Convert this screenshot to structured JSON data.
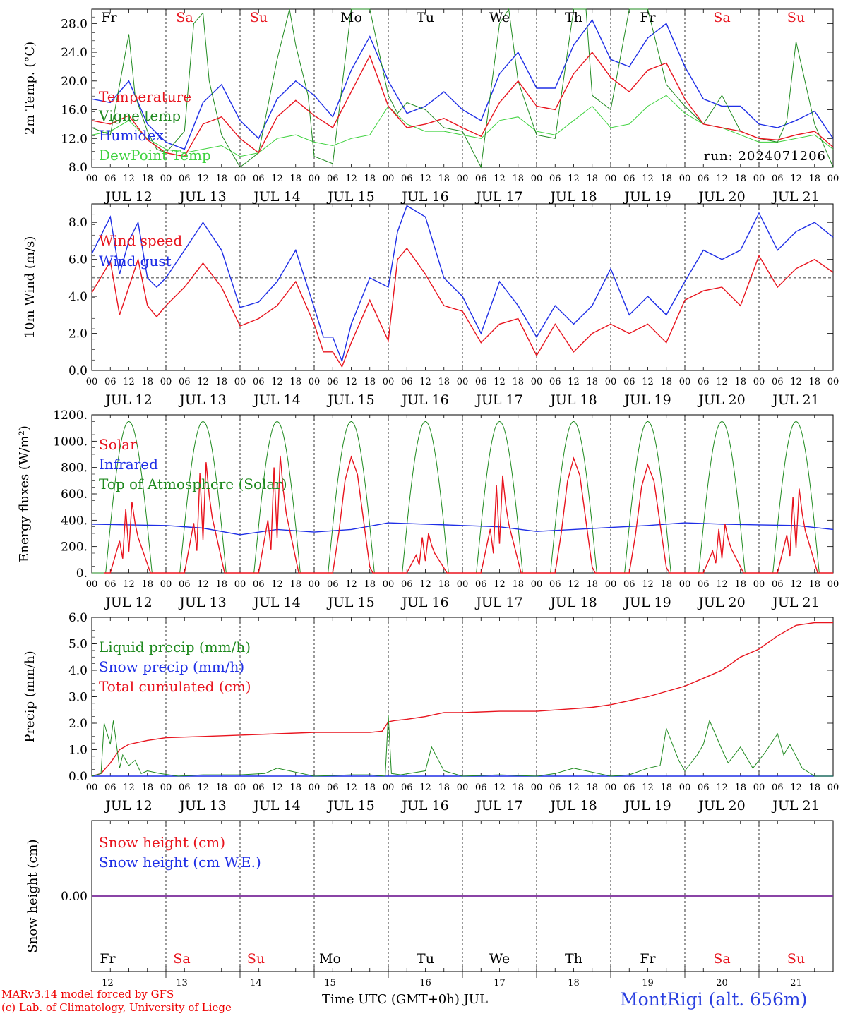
{
  "colors": {
    "red": "#e8141e",
    "green": "#1f8a1f",
    "blue": "#1e2ee6",
    "lightgreen": "#3ed23e",
    "weekend": "#e8141e",
    "weekday": "#000000",
    "snow": "#7a2a9a"
  },
  "days": [
    {
      "abbr": "Fr",
      "date": "JUL 12",
      "num": "12",
      "weekend": false
    },
    {
      "abbr": "Sa",
      "date": "JUL 13",
      "num": "13",
      "weekend": true
    },
    {
      "abbr": "Su",
      "date": "JUL 14",
      "num": "14",
      "weekend": true
    },
    {
      "abbr": "Mo",
      "date": "JUL 15",
      "num": "15",
      "weekend": false
    },
    {
      "abbr": "Tu",
      "date": "JUL 16",
      "num": "16",
      "weekend": false
    },
    {
      "abbr": "We",
      "date": "JUL 17",
      "num": "17",
      "weekend": false
    },
    {
      "abbr": "Th",
      "date": "JUL 18",
      "num": "18",
      "weekend": false
    },
    {
      "abbr": "Fr",
      "date": "JUL 19",
      "num": "19",
      "weekend": false
    },
    {
      "abbr": "Sa",
      "date": "JUL 20",
      "num": "20",
      "weekend": true
    },
    {
      "abbr": "Su",
      "date": "JUL 21",
      "num": "21",
      "weekend": true
    }
  ],
  "hour_ticks": [
    "00",
    "06",
    "12",
    "18"
  ],
  "last_hour_tick": "00",
  "footer": {
    "credit1": "MARv3.14 model forced by GFS",
    "credit2": "(c) Lab. of Climatology, University of Liege",
    "xlabel": "Time UTC (GMT+0h) JUL",
    "station": "MontRigi (alt. 656m)"
  },
  "chart_data": [
    {
      "type": "line",
      "ylabel": "2m Temp. (°C)",
      "ylim": [
        8,
        30
      ],
      "yticks": [
        "8.0",
        "12.0",
        "16.0",
        "20.0",
        "24.0",
        "28.0"
      ],
      "annotation": "run: 2024071206",
      "x_unit": "hours since JUL 12 00 UTC",
      "series": [
        {
          "name": "Temperature",
          "color": "red",
          "x": [
            0,
            6,
            12,
            18,
            24,
            30,
            36,
            42,
            48,
            54,
            60,
            66,
            72,
            78,
            84,
            90,
            96,
            102,
            108,
            114,
            120,
            126,
            132,
            138,
            144,
            150,
            156,
            162,
            168,
            174,
            180,
            186,
            192,
            198,
            204,
            210,
            216,
            222,
            228,
            234,
            240
          ],
          "values": [
            14.5,
            14.0,
            15.2,
            11.8,
            10.0,
            9.5,
            14.0,
            15.0,
            12.0,
            10.0,
            15.0,
            17.3,
            15.2,
            13.5,
            18.5,
            23.5,
            16.5,
            13.5,
            14.0,
            14.8,
            13.5,
            12.3,
            17.0,
            20.0,
            16.5,
            16.0,
            21.0,
            24.0,
            20.5,
            18.5,
            21.5,
            22.5,
            17.5,
            14.0,
            13.5,
            13.0,
            12.0,
            11.8,
            12.5,
            13.0,
            10.8
          ]
        },
        {
          "name": "Vigne temp",
          "color": "green",
          "x": [
            0,
            6,
            12,
            14,
            18,
            21,
            24,
            30,
            33,
            36,
            38,
            42,
            48,
            54,
            60,
            64,
            66,
            70,
            72,
            78,
            84,
            90,
            96,
            99,
            102,
            108,
            114,
            120,
            126,
            132,
            135,
            138,
            144,
            150,
            156,
            160,
            162,
            168,
            174,
            180,
            186,
            192,
            198,
            204,
            210,
            216,
            222,
            225,
            228,
            234,
            240
          ],
          "values": [
            13.5,
            12.5,
            26.5,
            18.0,
            13.0,
            10.5,
            10.0,
            13.0,
            28.0,
            29.5,
            20.0,
            12.5,
            7.5,
            10.0,
            23.0,
            30.0,
            25.0,
            18.0,
            9.5,
            8.5,
            30.0,
            30.0,
            18.0,
            15.5,
            17.0,
            16.0,
            13.5,
            13.0,
            8.0,
            28.0,
            30.0,
            20.0,
            12.5,
            12.0,
            30.0,
            30.0,
            18.0,
            16.0,
            30.0,
            30.0,
            19.5,
            16.5,
            14.0,
            18.0,
            13.0,
            12.0,
            11.5,
            14.5,
            25.5,
            14.0,
            8.0
          ]
        },
        {
          "name": "Humidex",
          "color": "blue",
          "x": [
            0,
            6,
            12,
            18,
            24,
            30,
            36,
            42,
            48,
            54,
            60,
            66,
            72,
            78,
            84,
            90,
            96,
            102,
            108,
            114,
            120,
            126,
            132,
            138,
            144,
            150,
            156,
            162,
            168,
            174,
            180,
            186,
            192,
            198,
            204,
            210,
            216,
            222,
            228,
            234,
            240
          ],
          "values": [
            17.5,
            17.0,
            20.0,
            14.0,
            11.5,
            10.5,
            17.0,
            19.5,
            14.5,
            12.0,
            17.5,
            20.0,
            18.0,
            15.0,
            21.5,
            26.2,
            20.0,
            15.5,
            16.5,
            18.5,
            16.0,
            14.5,
            21.0,
            24.0,
            19.0,
            19.0,
            25.0,
            28.5,
            23.0,
            22.0,
            26.0,
            28.0,
            22.0,
            17.5,
            16.5,
            16.5,
            14.0,
            13.5,
            14.5,
            15.8,
            12.0
          ]
        },
        {
          "name": "DewPoint Temp",
          "color": "lightgreen",
          "x": [
            0,
            6,
            12,
            18,
            24,
            30,
            36,
            42,
            48,
            54,
            60,
            66,
            72,
            78,
            84,
            90,
            96,
            102,
            108,
            114,
            120,
            126,
            132,
            138,
            144,
            150,
            156,
            162,
            168,
            174,
            180,
            186,
            192,
            198,
            204,
            210,
            216,
            222,
            228,
            234,
            240
          ],
          "values": [
            12.5,
            13.0,
            14.5,
            12.0,
            10.5,
            10.0,
            10.5,
            11.0,
            9.5,
            10.0,
            12.0,
            12.5,
            11.5,
            11.0,
            12.0,
            12.5,
            16.5,
            14.0,
            13.0,
            13.0,
            12.5,
            12.0,
            14.5,
            15.0,
            13.0,
            12.5,
            14.5,
            16.5,
            13.5,
            14.0,
            16.5,
            18.0,
            15.5,
            14.0,
            13.5,
            12.5,
            11.5,
            11.5,
            12.0,
            12.5,
            10.5
          ]
        }
      ]
    },
    {
      "type": "line",
      "ylabel": "10m Wind (m/s)",
      "ylim": [
        0,
        9
      ],
      "yticks": [
        "0.0",
        "2.0",
        "4.0",
        "6.0",
        "8.0"
      ],
      "reference_line": 5.0,
      "x_unit": "hours since JUL 12 00 UTC",
      "series": [
        {
          "name": "Wind speed",
          "color": "red",
          "x": [
            0,
            6,
            9,
            12,
            15,
            18,
            21,
            24,
            30,
            36,
            42,
            48,
            54,
            60,
            66,
            72,
            75,
            78,
            81,
            84,
            90,
            96,
            99,
            102,
            108,
            114,
            120,
            126,
            132,
            138,
            144,
            150,
            156,
            162,
            168,
            174,
            180,
            186,
            192,
            198,
            204,
            210,
            216,
            222,
            228,
            234,
            240
          ],
          "values": [
            4.2,
            5.9,
            3.0,
            4.5,
            6.0,
            3.5,
            2.9,
            3.5,
            4.5,
            5.8,
            4.5,
            2.4,
            2.8,
            3.5,
            4.8,
            2.5,
            1.0,
            1.0,
            0.2,
            1.5,
            3.8,
            1.6,
            6.0,
            6.6,
            5.2,
            3.5,
            3.2,
            1.5,
            2.5,
            2.8,
            0.8,
            2.5,
            1.0,
            2.0,
            2.5,
            2.0,
            2.5,
            1.5,
            3.8,
            4.3,
            4.5,
            3.5,
            6.2,
            4.5,
            5.5,
            6.0,
            5.3
          ]
        },
        {
          "name": "Wind gust",
          "color": "blue",
          "x": [
            0,
            6,
            9,
            12,
            15,
            18,
            21,
            24,
            30,
            36,
            42,
            48,
            54,
            60,
            66,
            72,
            75,
            78,
            81,
            84,
            90,
            96,
            99,
            102,
            108,
            114,
            120,
            126,
            132,
            138,
            144,
            150,
            156,
            162,
            168,
            174,
            180,
            186,
            192,
            198,
            204,
            210,
            216,
            222,
            228,
            234,
            240
          ],
          "values": [
            6.3,
            8.3,
            5.2,
            7.0,
            8.0,
            5.0,
            4.5,
            5.0,
            6.5,
            8.0,
            6.5,
            3.4,
            3.7,
            4.8,
            6.5,
            3.4,
            1.8,
            1.8,
            0.5,
            2.5,
            5.0,
            4.5,
            7.5,
            8.9,
            8.3,
            5.0,
            4.0,
            2.0,
            4.8,
            3.5,
            1.8,
            3.5,
            2.5,
            3.5,
            5.5,
            3.0,
            4.0,
            3.0,
            4.8,
            6.5,
            6.0,
            6.5,
            8.5,
            6.5,
            7.5,
            8.0,
            7.2
          ]
        }
      ]
    },
    {
      "type": "line",
      "ylabel": "Energy fluxes (W/m²)",
      "ylim": [
        0,
        1200
      ],
      "yticks": [
        "0.",
        "200.",
        "400.",
        "600.",
        "800.",
        "1000.",
        "1200."
      ],
      "x_unit": "hours since JUL 12 00 UTC",
      "series": [
        {
          "name": "Solar",
          "color": "red",
          "peaks": [
            [
              12,
              540
            ],
            [
              36,
              840
            ],
            [
              60,
              890
            ],
            [
              84,
              880
            ],
            [
              108,
              300
            ],
            [
              132,
              740
            ],
            [
              156,
              870
            ],
            [
              180,
              820
            ],
            [
              204,
              370
            ],
            [
              228,
              640
            ]
          ]
        },
        {
          "name": "Infrared",
          "color": "blue",
          "x": [
            0,
            12,
            24,
            36,
            48,
            60,
            72,
            84,
            96,
            108,
            120,
            132,
            144,
            156,
            168,
            180,
            192,
            204,
            216,
            228,
            240
          ],
          "values": [
            370,
            365,
            360,
            340,
            290,
            330,
            310,
            330,
            380,
            370,
            360,
            350,
            315,
            330,
            345,
            360,
            380,
            370,
            365,
            360,
            330
          ]
        },
        {
          "name": "Top of Atmosphere (Solar)",
          "color": "green",
          "peak": 1150,
          "daylight_hours": [
            4.5,
            19.5
          ]
        }
      ]
    },
    {
      "type": "line",
      "ylabel": "Precip (mm/h)",
      "ylim": [
        0,
        6
      ],
      "yticks": [
        "0.0",
        "1.0",
        "2.0",
        "3.0",
        "4.0",
        "5.0",
        "6.0"
      ],
      "x_unit": "hours since JUL 12 00 UTC",
      "series": [
        {
          "name": "Liquid precip (mm/h)",
          "color": "green",
          "x": [
            0,
            3,
            4,
            6,
            7,
            9,
            10,
            12,
            14,
            16,
            18,
            22,
            28,
            36,
            48,
            56,
            60,
            72,
            84,
            90,
            95,
            96,
            97,
            100,
            108,
            110,
            114,
            120,
            132,
            144,
            150,
            156,
            168,
            174,
            180,
            184,
            186,
            190,
            192,
            196,
            198,
            200,
            204,
            206,
            210,
            214,
            218,
            222,
            224,
            226,
            230,
            234,
            240
          ],
          "values": [
            0,
            0.1,
            2.0,
            1.2,
            2.1,
            0.3,
            0.8,
            0.4,
            0.6,
            0.1,
            0.2,
            0.1,
            0,
            0.05,
            0.05,
            0.1,
            0.3,
            0,
            0.05,
            0.05,
            0,
            2.3,
            0.1,
            0.05,
            0.2,
            1.1,
            0.2,
            0,
            0.05,
            0,
            0.1,
            0.3,
            0,
            0.05,
            0.3,
            0.4,
            1.8,
            0.6,
            0.2,
            0.8,
            1.2,
            2.1,
            1.0,
            0.5,
            1.1,
            0.3,
            0.9,
            1.6,
            0.8,
            1.2,
            0.3,
            0,
            0
          ]
        },
        {
          "name": "Snow precip (mm/h)",
          "color": "blue",
          "x": [
            0,
            240
          ],
          "values": [
            0,
            0
          ]
        },
        {
          "name": "Total cumulated (cm)",
          "color": "red",
          "x": [
            0,
            3,
            6,
            9,
            12,
            18,
            24,
            36,
            48,
            60,
            72,
            84,
            90,
            94,
            96,
            98,
            102,
            108,
            114,
            120,
            132,
            144,
            156,
            162,
            168,
            174,
            180,
            186,
            192,
            198,
            204,
            210,
            216,
            222,
            228,
            234,
            240
          ],
          "values": [
            0,
            0.1,
            0.5,
            1.0,
            1.2,
            1.35,
            1.45,
            1.5,
            1.55,
            1.6,
            1.65,
            1.65,
            1.65,
            1.7,
            2.05,
            2.1,
            2.15,
            2.25,
            2.4,
            2.4,
            2.45,
            2.45,
            2.55,
            2.6,
            2.7,
            2.85,
            3.0,
            3.2,
            3.4,
            3.7,
            4.0,
            4.5,
            4.8,
            5.3,
            5.7,
            5.8,
            5.8
          ]
        }
      ]
    },
    {
      "type": "line",
      "ylabel": "Snow height (cm)",
      "yticks": [
        "0.00"
      ],
      "x_unit": "hours since JUL 12 00 UTC",
      "series": [
        {
          "name": "Snow height (cm)",
          "color": "red",
          "x": [
            0,
            240
          ],
          "values": [
            0,
            0
          ]
        },
        {
          "name": "Snow height (cm W.E.)",
          "color": "blue",
          "x": [
            0,
            240
          ],
          "values": [
            0,
            0
          ]
        }
      ]
    }
  ]
}
